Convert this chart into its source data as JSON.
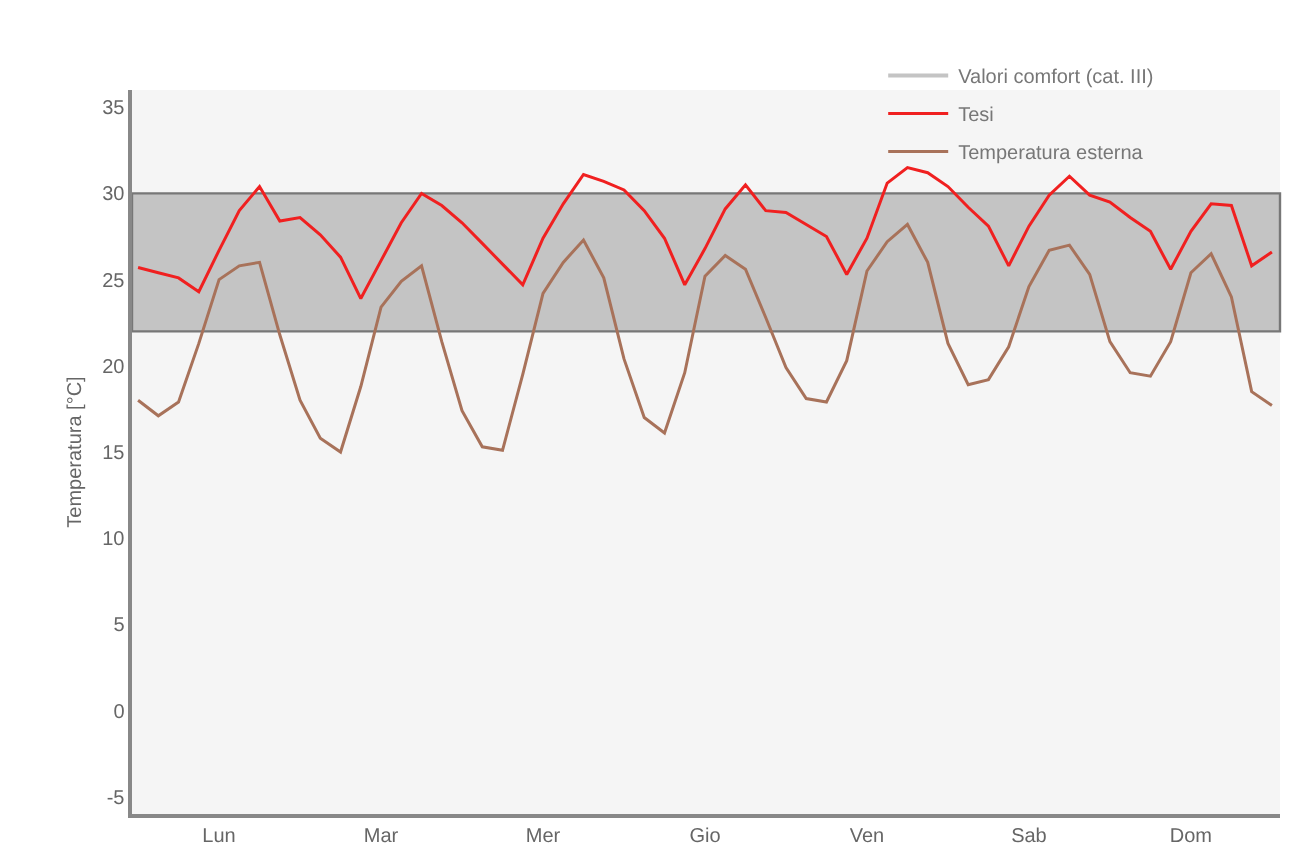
{
  "chart_data": {
    "type": "line",
    "ylabel": "Temperatura [°C]",
    "categories": [
      null,
      null,
      null,
      null,
      "Lun",
      null,
      null,
      null,
      null,
      null,
      null,
      null,
      "Mar",
      null,
      null,
      null,
      null,
      null,
      null,
      null,
      "Mer",
      null,
      null,
      null,
      null,
      null,
      null,
      null,
      "Gio",
      null,
      null,
      null,
      null,
      null,
      null,
      null,
      "Ven",
      null,
      null,
      null,
      null,
      null,
      null,
      null,
      "Sab",
      null,
      null,
      null,
      null,
      null,
      null,
      null,
      "Dom",
      null,
      null,
      null,
      null
    ],
    "ylim": [
      -6,
      36
    ],
    "yticks": [
      -5,
      0,
      5,
      10,
      15,
      20,
      25,
      30,
      35
    ],
    "grid": false,
    "legend": "top right",
    "marker": "none",
    "line_style": "solid",
    "bands": [
      {
        "axis": "y",
        "from": 22,
        "to": 30,
        "label": "Valori comfort (cat. III)",
        "color": "#c4c4c4"
      }
    ],
    "series": [
      {
        "name": "Tesi",
        "color": "#f02020",
        "values": [
          25.7,
          25.4,
          25.1,
          24.3,
          26.7,
          29.0,
          30.4,
          28.4,
          28.6,
          27.6,
          26.3,
          23.9,
          26.1,
          28.3,
          30.0,
          29.3,
          28.3,
          27.1,
          25.9,
          24.7,
          27.4,
          29.4,
          31.1,
          30.7,
          30.2,
          29.0,
          27.4,
          24.7,
          26.8,
          29.1,
          30.5,
          29.0,
          28.9,
          28.2,
          27.5,
          25.3,
          27.4,
          30.6,
          31.5,
          31.2,
          30.4,
          29.2,
          28.1,
          25.8,
          28.1,
          29.9,
          31.0,
          29.9,
          29.5,
          28.6,
          27.8,
          25.6,
          27.8,
          29.4,
          29.3,
          25.8,
          26.6
        ]
      },
      {
        "name": "Temperatura esterna",
        "color": "#a8725a",
        "values": [
          18.0,
          17.1,
          17.9,
          21.3,
          25.0,
          25.8,
          26.0,
          21.8,
          18.0,
          15.8,
          15.0,
          18.8,
          23.4,
          24.9,
          25.8,
          21.4,
          17.4,
          15.3,
          15.1,
          19.5,
          24.2,
          26.0,
          27.3,
          25.1,
          20.4,
          17.0,
          16.1,
          19.6,
          25.2,
          26.4,
          25.6,
          22.8,
          19.9,
          18.1,
          17.9,
          20.3,
          25.5,
          27.2,
          28.2,
          26.0,
          21.3,
          18.9,
          19.2,
          21.1,
          24.6,
          26.7,
          27.0,
          25.3,
          21.4,
          19.6,
          19.4,
          21.4,
          25.4,
          26.5,
          24.0,
          18.5,
          17.7
        ]
      }
    ]
  }
}
